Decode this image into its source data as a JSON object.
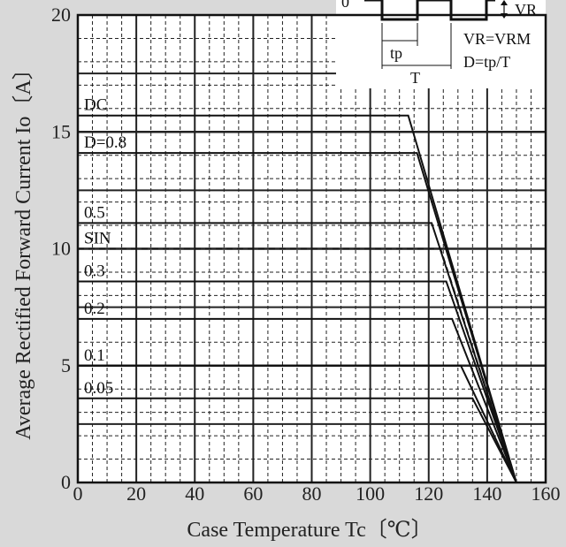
{
  "chart_data": {
    "type": "line",
    "title": "",
    "xlabel": "Case Temperature  Tc〔℃〕",
    "ylabel": "Average Rectified Forward Current  Io〔A〕",
    "xlim": [
      0,
      160
    ],
    "ylim": [
      0,
      20
    ],
    "xticks": [
      "0",
      "20",
      "40",
      "60",
      "80",
      "100",
      "120",
      "140",
      "160"
    ],
    "yticks": [
      "0",
      "5",
      "10",
      "15",
      "20"
    ],
    "grid": "major solid, minor dashed",
    "series": [
      {
        "name": "DC",
        "style": "solid",
        "x": [
          0,
          113,
          150
        ],
        "y": [
          15.7,
          15.7,
          0
        ]
      },
      {
        "name": "D=0.8",
        "style": "solid",
        "x": [
          0,
          116,
          150
        ],
        "y": [
          14.1,
          14.1,
          0
        ]
      },
      {
        "name": "0.5",
        "style": "solid",
        "x": [
          0,
          121,
          150
        ],
        "y": [
          11.1,
          11.1,
          0
        ]
      },
      {
        "name": "SIN",
        "style": "dashed",
        "x": [
          0,
          124,
          150
        ],
        "y": [
          10.0,
          10.0,
          0
        ]
      },
      {
        "name": "0.3",
        "style": "solid",
        "x": [
          0,
          126,
          150
        ],
        "y": [
          8.6,
          8.6,
          0
        ]
      },
      {
        "name": "0.2",
        "style": "solid",
        "x": [
          0,
          128,
          150
        ],
        "y": [
          7.0,
          7.0,
          0
        ]
      },
      {
        "name": "0.1",
        "style": "solid",
        "x": [
          0,
          131,
          150
        ],
        "y": [
          5.0,
          5.0,
          0
        ]
      },
      {
        "name": "0.05",
        "style": "solid",
        "x": [
          0,
          135,
          150
        ],
        "y": [
          3.6,
          3.6,
          0
        ]
      }
    ],
    "inset": {
      "label_zero": "0",
      "label_vr": "VR",
      "label_tp": "tp",
      "label_T": "T",
      "formula1": "VR=VRM",
      "formula2": "D=tp/T"
    }
  }
}
